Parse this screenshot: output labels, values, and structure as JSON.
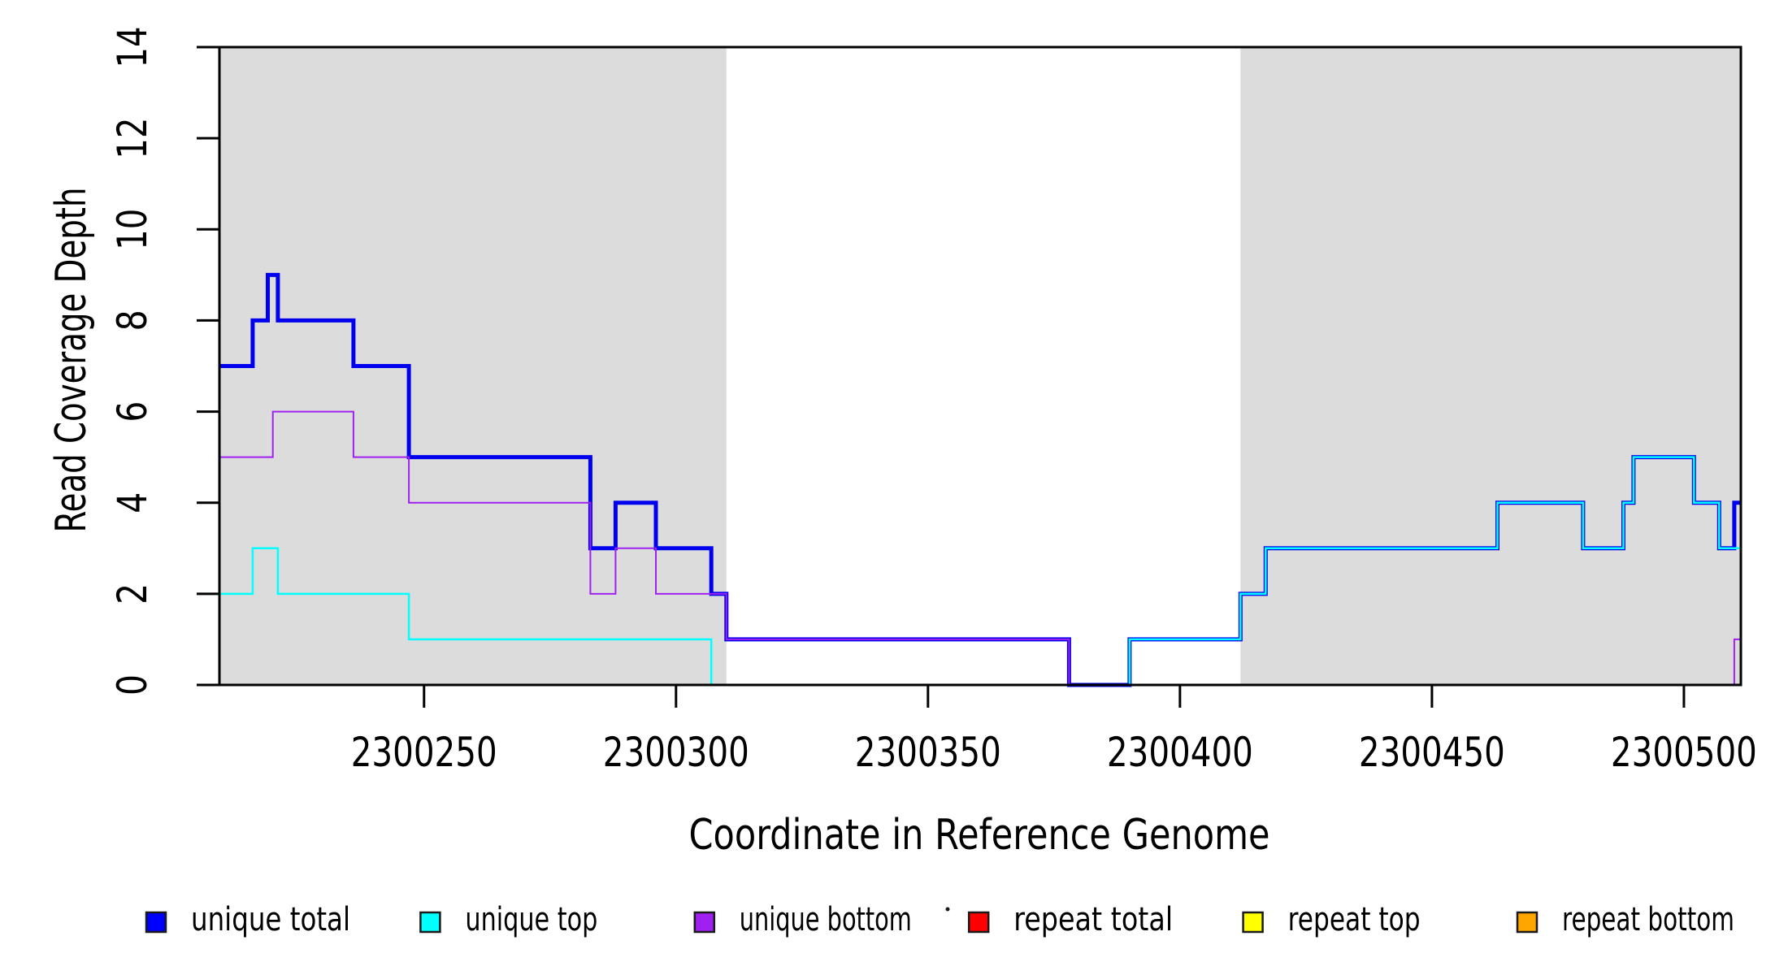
{
  "figure": {
    "background": "#FFFFFF",
    "plot_border_color": "#000000"
  },
  "chart_data": {
    "type": "line",
    "subtype": "step",
    "title": "",
    "xlabel": "Coordinate in Reference Genome",
    "ylabel": "Read Coverage Depth",
    "x_range": [
      2300209.4,
      2300511.3
    ],
    "y_range": [
      0,
      14
    ],
    "x_ticks": [
      2300250,
      2300300,
      2300350,
      2300400,
      2300450,
      2300500
    ],
    "y_ticks": [
      0,
      2,
      4,
      6,
      8,
      10,
      12,
      14
    ],
    "grid": false,
    "legend_position": "bottom",
    "shaded_regions": [
      {
        "name": "left-shaded-region",
        "x_start": 2300209.4,
        "x_end": 2300310,
        "color": "#DCDCDC"
      },
      {
        "name": "right-shaded-region",
        "x_start": 2300412,
        "x_end": 2300511.3,
        "color": "#DCDCDC"
      }
    ],
    "series": [
      {
        "name": "repeat total",
        "color": "#FF0000",
        "line_width": 2,
        "steps": [
          [
            2300209.4,
            0
          ]
        ]
      },
      {
        "name": "repeat top",
        "color": "#FFFF00",
        "line_width": 2,
        "steps": [
          [
            2300209.4,
            0
          ]
        ]
      },
      {
        "name": "repeat bottom",
        "color": "#FFA500",
        "line_width": 3,
        "steps": [
          [
            2300209.4,
            0
          ]
        ]
      },
      {
        "name": "unique total",
        "color": "#0000EE",
        "line_width": 5,
        "steps": [
          [
            2300209.4,
            7
          ],
          [
            2300216,
            8
          ],
          [
            2300219,
            9
          ],
          [
            2300221,
            8
          ],
          [
            2300236,
            7
          ],
          [
            2300247,
            5
          ],
          [
            2300283,
            3
          ],
          [
            2300288,
            4
          ],
          [
            2300296,
            3
          ],
          [
            2300307,
            2
          ],
          [
            2300310,
            1
          ],
          [
            2300378,
            0
          ],
          [
            2300390,
            1
          ],
          [
            2300412,
            2
          ],
          [
            2300417,
            3
          ],
          [
            2300463,
            4
          ],
          [
            2300480,
            3
          ],
          [
            2300488,
            4
          ],
          [
            2300490,
            5
          ],
          [
            2300502,
            4
          ],
          [
            2300507,
            3
          ],
          [
            2300510,
            4
          ]
        ]
      },
      {
        "name": "unique top",
        "color": "#00FFFF",
        "line_width": 2.5,
        "steps": [
          [
            2300209.4,
            2
          ],
          [
            2300216,
            3
          ],
          [
            2300221,
            2
          ],
          [
            2300247,
            1
          ],
          [
            2300307,
            0
          ],
          [
            2300390,
            1
          ],
          [
            2300412,
            2
          ],
          [
            2300417,
            3
          ],
          [
            2300463,
            4
          ],
          [
            2300480,
            3
          ],
          [
            2300488,
            4
          ],
          [
            2300490,
            5
          ],
          [
            2300502,
            4
          ],
          [
            2300507,
            3
          ]
        ]
      },
      {
        "name": "unique bottom",
        "color": "#A020F0",
        "line_width": 2,
        "steps": [
          [
            2300209.4,
            5
          ],
          [
            2300220,
            6
          ],
          [
            2300236,
            5
          ],
          [
            2300247,
            4
          ],
          [
            2300283,
            2
          ],
          [
            2300288,
            3
          ],
          [
            2300296,
            2
          ],
          [
            2300310,
            1
          ],
          [
            2300378,
            0
          ],
          [
            2300510,
            1
          ]
        ]
      }
    ],
    "legend": [
      {
        "label": "unique total",
        "color": "#0000FF"
      },
      {
        "label": "unique top",
        "color": "#00FFFF"
      },
      {
        "label": "unique bottom",
        "color": "#A020F0"
      },
      {
        "label": "repeat total",
        "color": "#FF0000"
      },
      {
        "label": "repeat top",
        "color": "#FFFF00"
      },
      {
        "label": "repeat bottom",
        "color": "#FFA500"
      }
    ]
  }
}
